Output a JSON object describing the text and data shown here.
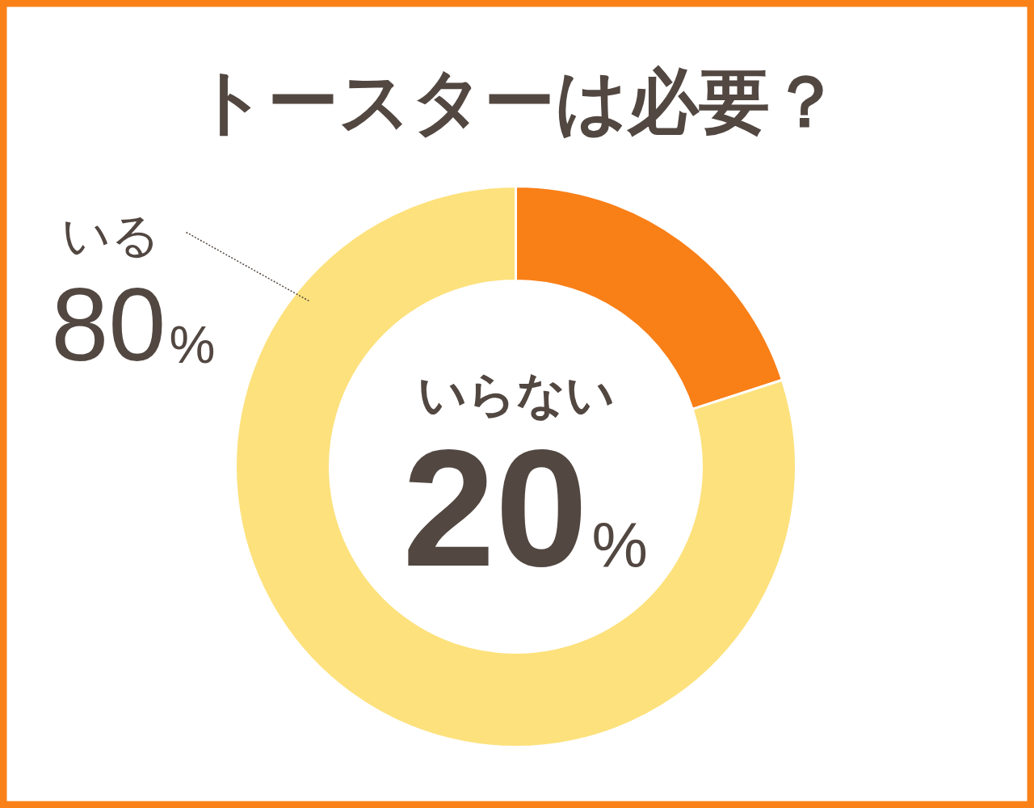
{
  "chart_data": {
    "type": "donut",
    "title": "トースターは必要？",
    "categories": [
      "いらない",
      "いる"
    ],
    "values": [
      20,
      80
    ],
    "colors": [
      "#f97f17",
      "#fde17c"
    ],
    "value_labels": [
      "20%",
      "80%"
    ]
  }
}
